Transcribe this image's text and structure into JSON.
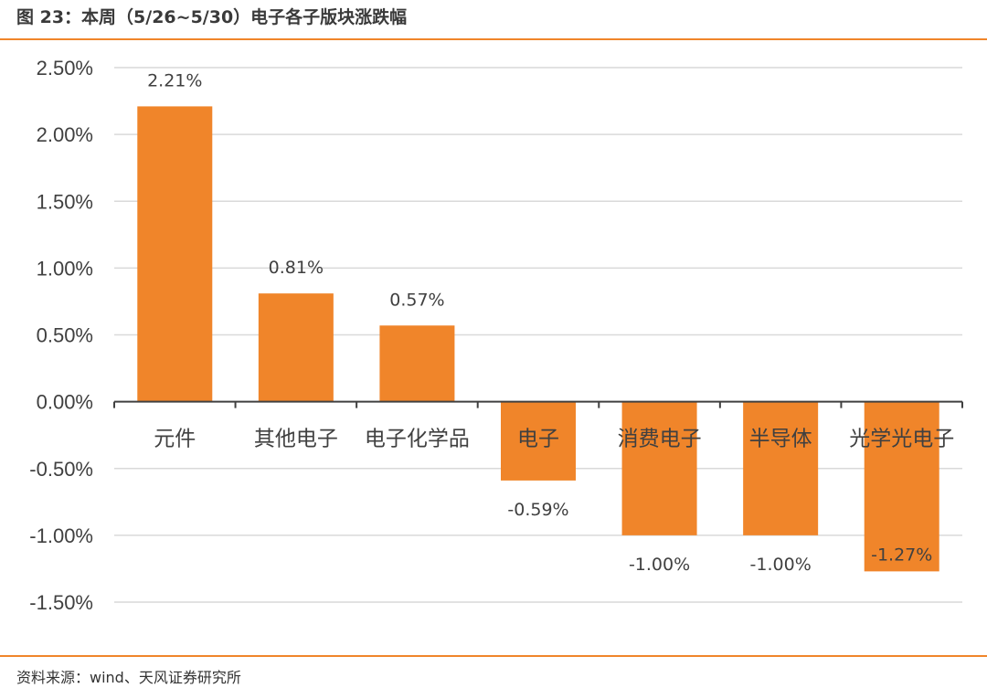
{
  "header": {
    "title": "图 23：本周（5/26~5/30）电子各子版块涨跌幅"
  },
  "footer": {
    "source": "资料来源：wind、天风证券研究所"
  },
  "colors": {
    "accent": "#F0852A",
    "bar": "#F0852A",
    "grid": "#D9D9D9",
    "axis": "#404040"
  },
  "chart_data": {
    "type": "bar",
    "title": "本周（5/26~5/30）电子各子版块涨跌幅",
    "xlabel": "",
    "ylabel": "",
    "categories": [
      "元件",
      "其他电子",
      "电子化学品",
      "电子",
      "消费电子",
      "半导体",
      "光学光电子"
    ],
    "values": [
      2.21,
      0.81,
      0.57,
      -0.59,
      -1.0,
      -1.0,
      -1.27
    ],
    "value_labels": [
      "2.21%",
      "0.81%",
      "0.57%",
      "-0.59%",
      "-1.00%",
      "-1.00%",
      "-1.27%"
    ],
    "ylim": [
      -1.5,
      2.5
    ],
    "yticks": [
      2.5,
      2.0,
      1.5,
      1.0,
      0.5,
      0.0,
      -0.5,
      -1.0,
      -1.5
    ],
    "ytick_labels": [
      "2.50%",
      "2.00%",
      "1.50%",
      "1.00%",
      "0.50%",
      "0.00%",
      "-0.50%",
      "-1.00%",
      "-1.50%"
    ],
    "grid": true,
    "legend": "none"
  }
}
